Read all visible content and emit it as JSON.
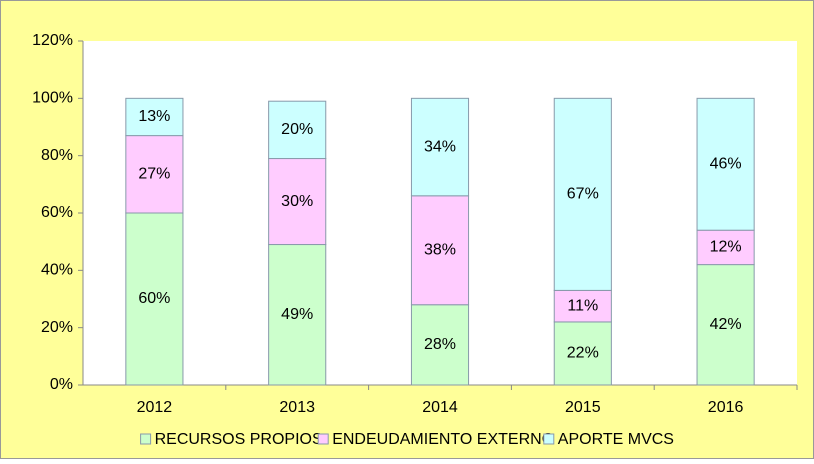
{
  "chart_data": {
    "type": "stacked_bar",
    "categories": [
      "2012",
      "2013",
      "2014",
      "2015",
      "2016"
    ],
    "series": [
      {
        "name": "RECURSOS PROPIOS",
        "color": "#ccffcc",
        "values": [
          60,
          49,
          28,
          22,
          42
        ],
        "value_labels": [
          "60%",
          "49%",
          "28%",
          "22%",
          "42%"
        ]
      },
      {
        "name": "ENDEUDAMIENTO EXTERNO",
        "color": "#ffccff",
        "values": [
          27,
          30,
          38,
          11,
          12
        ],
        "value_labels": [
          "27%",
          "30%",
          "38%",
          "11%",
          "12%"
        ]
      },
      {
        "name": "APORTE MVCS",
        "color": "#ccffff",
        "values": [
          13,
          20,
          34,
          67,
          46
        ],
        "value_labels": [
          "13%",
          "20%",
          "34%",
          "67%",
          "46%"
        ]
      }
    ],
    "ylim": [
      0,
      120
    ],
    "yticks": [
      {
        "value": 0,
        "label": "0%"
      },
      {
        "value": 20,
        "label": "20%"
      },
      {
        "value": 40,
        "label": "40%"
      },
      {
        "value": 60,
        "label": "60%"
      },
      {
        "value": 80,
        "label": "80%"
      },
      {
        "value": 100,
        "label": "100%"
      },
      {
        "value": 120,
        "label": "120%"
      }
    ],
    "grid": false,
    "legend": "bottom"
  }
}
